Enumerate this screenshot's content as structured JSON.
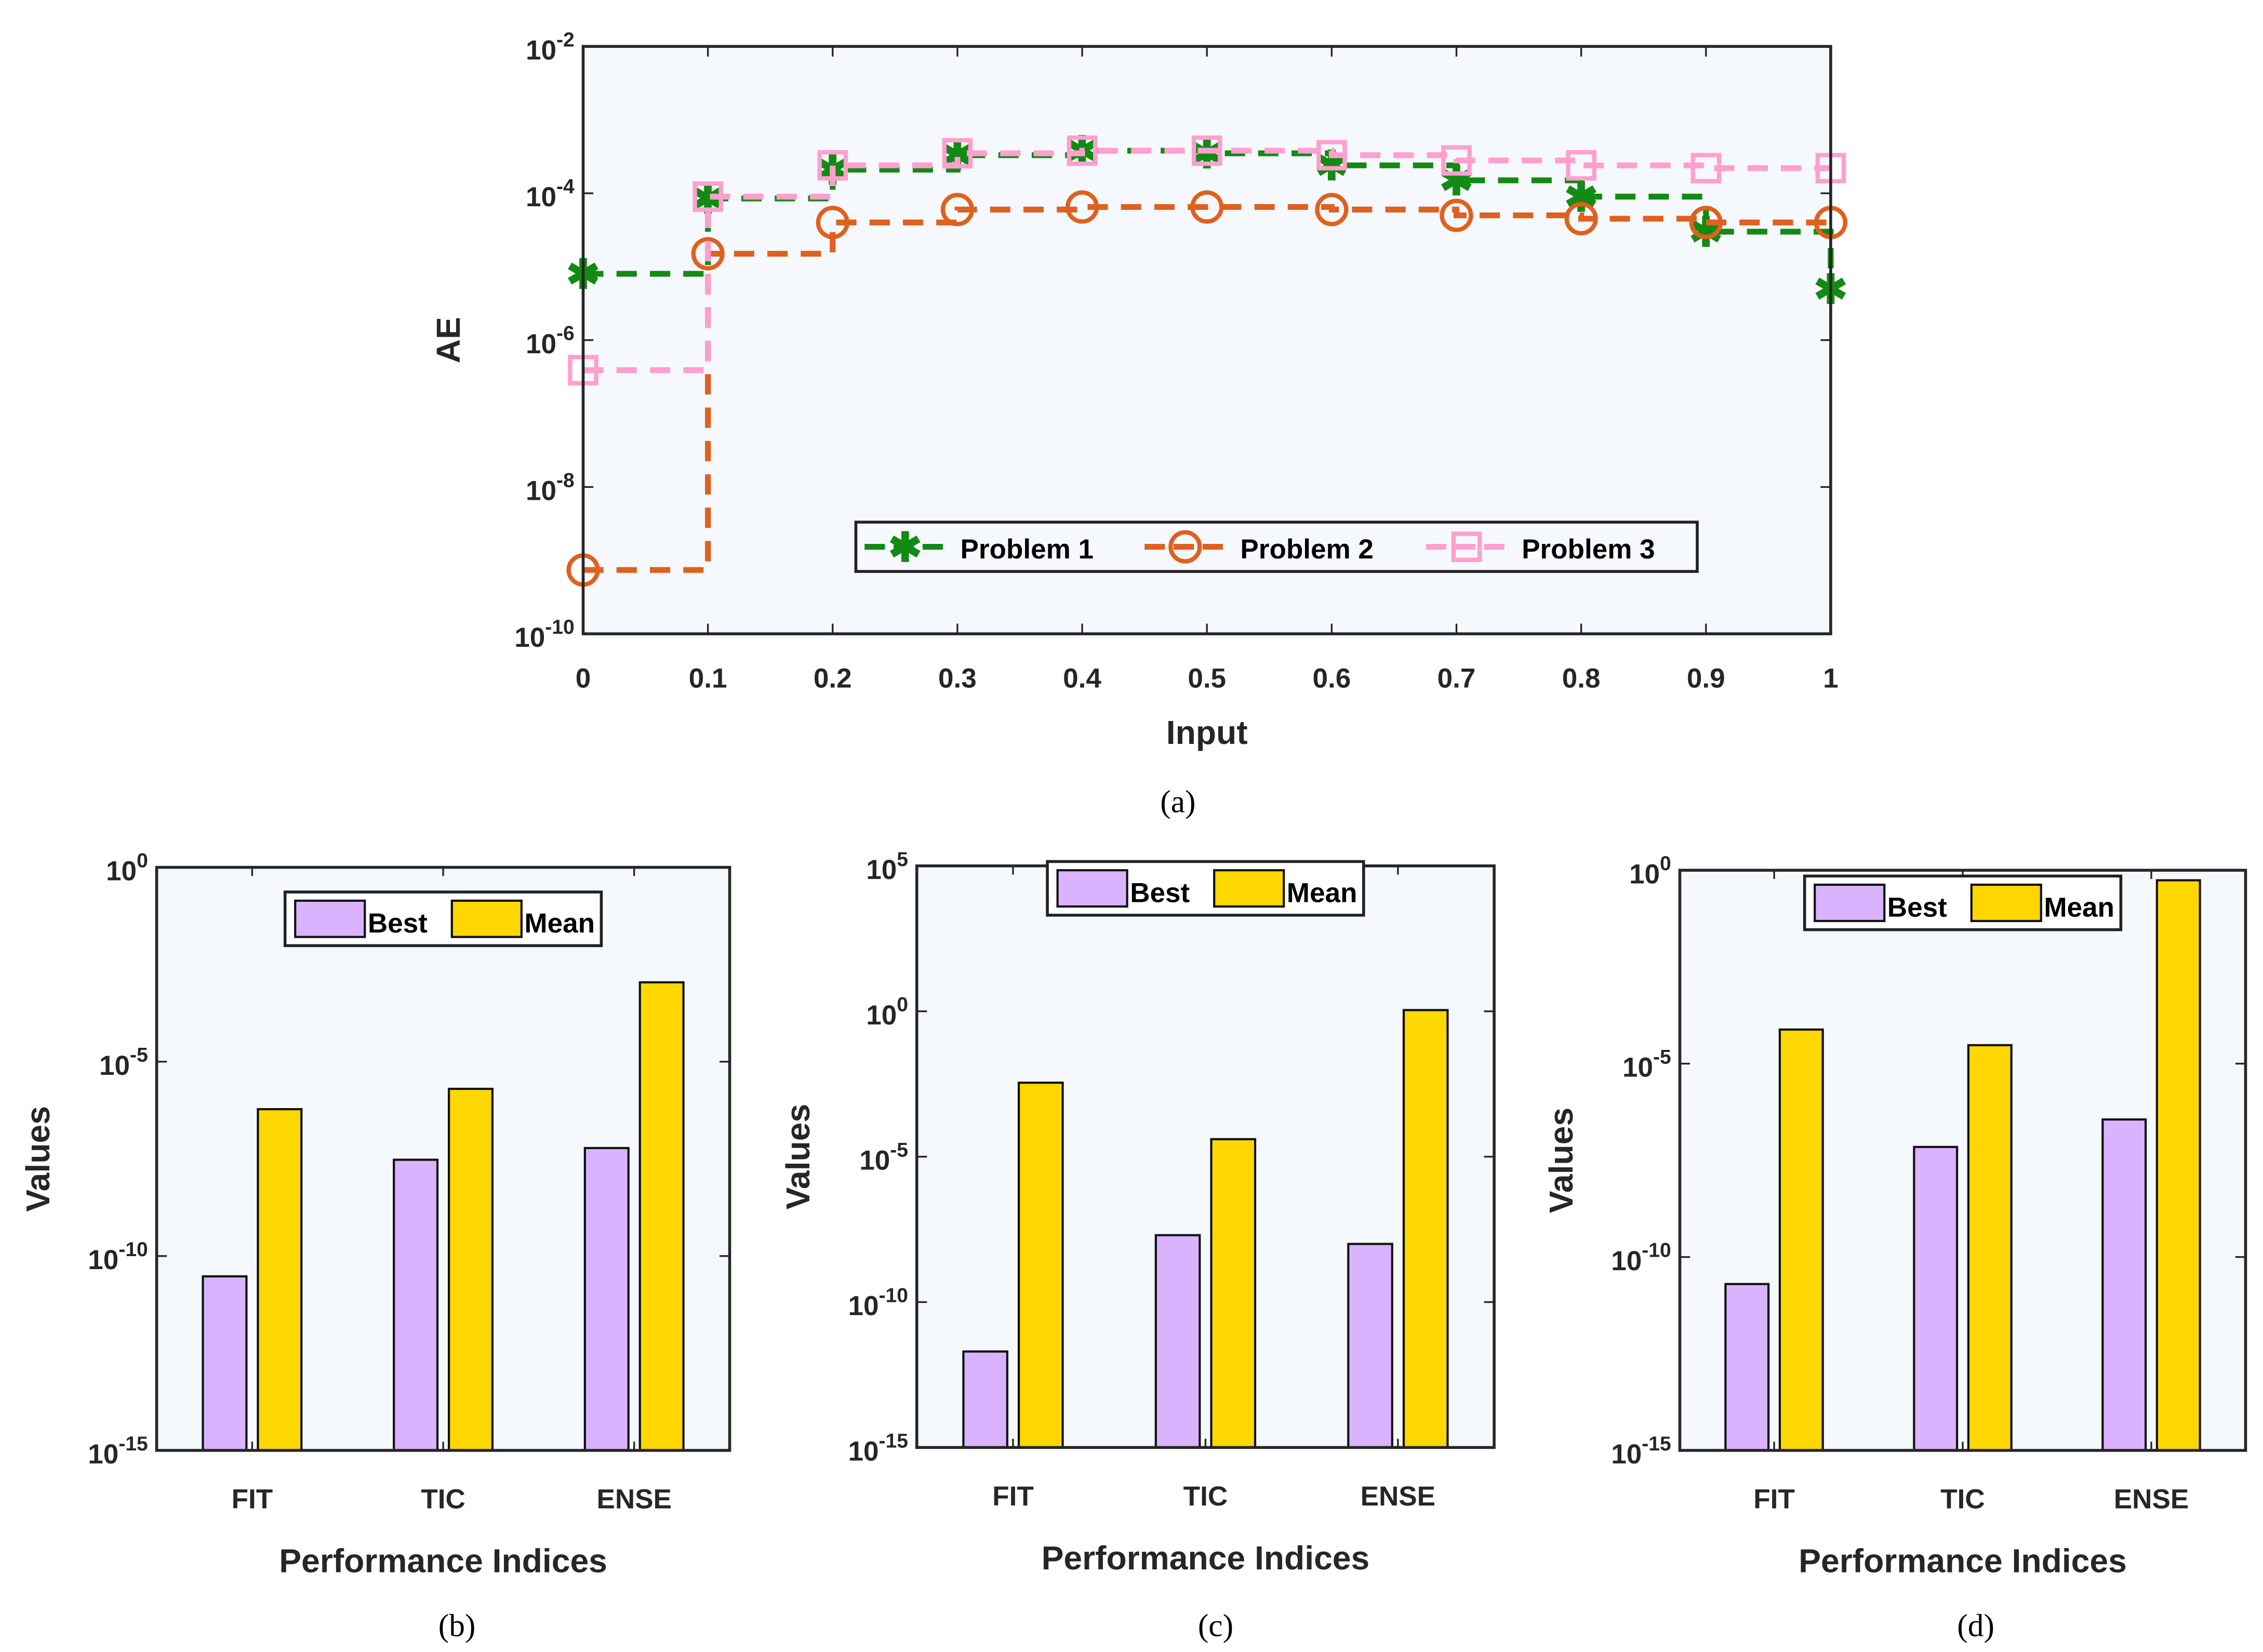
{
  "captions": [
    "(a)",
    "(b)",
    "(c)",
    "(d)"
  ],
  "colors": {
    "plot_bg": "#f5f8fc",
    "p1": "#138a13",
    "p2": "#e0601f",
    "p3": "#ff9fd0",
    "best": "#d9b3ff",
    "mean": "#ffd700"
  },
  "chart_data": [
    {
      "type": "line",
      "id": "a",
      "xlabel": "Input",
      "ylabel": "AE",
      "yscale": "log",
      "xlim": [
        0,
        1
      ],
      "ylim": [
        1e-10,
        0.01
      ],
      "xticks": [
        "0",
        "0.1",
        "0.2",
        "0.3",
        "0.4",
        "0.5",
        "0.6",
        "0.7",
        "0.8",
        "0.9",
        "1"
      ],
      "yticks_exp": [
        -10,
        -8,
        -6,
        -4,
        -2
      ],
      "legend": "bottom-center",
      "x": [
        0,
        0.1,
        0.2,
        0.3,
        0.4,
        0.5,
        0.6,
        0.7,
        0.8,
        0.9,
        1
      ],
      "series": [
        {
          "name": "Problem 1",
          "marker": "asterisk",
          "values": [
            8e-06,
            8.5e-05,
            0.00021,
            0.00033,
            0.00038,
            0.00035,
            0.00024,
            0.00015,
            9e-05,
            3e-05,
            5e-06
          ]
        },
        {
          "name": "Problem 2",
          "marker": "circle",
          "values": [
            7.4e-10,
            1.5e-05,
            4e-05,
            6e-05,
            6.5e-05,
            6.5e-05,
            6e-05,
            5e-05,
            4.5e-05,
            4e-05,
            4e-05
          ]
        },
        {
          "name": "Problem 3",
          "marker": "square",
          "values": [
            3.9e-07,
            9e-05,
            0.00024,
            0.00035,
            0.00038,
            0.00038,
            0.00033,
            0.00028,
            0.00024,
            0.00022,
            0.00022
          ]
        }
      ]
    },
    {
      "type": "bar",
      "id": "b",
      "xlabel": "Performance Indices",
      "ylabel": "Values",
      "yscale": "log",
      "ylim": [
        1e-15,
        1
      ],
      "yticks_exp": [
        -15,
        -10,
        -5,
        0
      ],
      "legend": "top-center",
      "categories": [
        "FIT",
        "TIC",
        "ENSE"
      ],
      "series": [
        {
          "name": "Best",
          "values": [
            3e-11,
            3e-08,
            6e-08
          ]
        },
        {
          "name": "Mean",
          "values": [
            6e-07,
            2e-06,
            0.0011
          ]
        }
      ]
    },
    {
      "type": "bar",
      "id": "c",
      "xlabel": "Performance Indices",
      "ylabel": "Values",
      "yscale": "log",
      "ylim": [
        1e-15,
        100000.0
      ],
      "yticks_exp": [
        -15,
        -10,
        -5,
        0,
        5
      ],
      "legend": "top-center",
      "categories": [
        "FIT",
        "TIC",
        "ENSE"
      ],
      "series": [
        {
          "name": "Best",
          "values": [
            2e-12,
            2e-08,
            1e-08
          ]
        },
        {
          "name": "Mean",
          "values": [
            0.0035,
            4e-05,
            1.1
          ]
        }
      ]
    },
    {
      "type": "bar",
      "id": "d",
      "xlabel": "Performance Indices",
      "ylabel": "Values",
      "yscale": "log",
      "ylim": [
        1e-15,
        1
      ],
      "yticks_exp": [
        -15,
        -10,
        -5,
        0
      ],
      "legend": "top-center",
      "categories": [
        "FIT",
        "TIC",
        "ENSE"
      ],
      "series": [
        {
          "name": "Best",
          "values": [
            2e-11,
            7e-08,
            3.6e-07
          ]
        },
        {
          "name": "Mean",
          "values": [
            7.6e-05,
            3e-05,
            0.55
          ]
        }
      ]
    }
  ]
}
